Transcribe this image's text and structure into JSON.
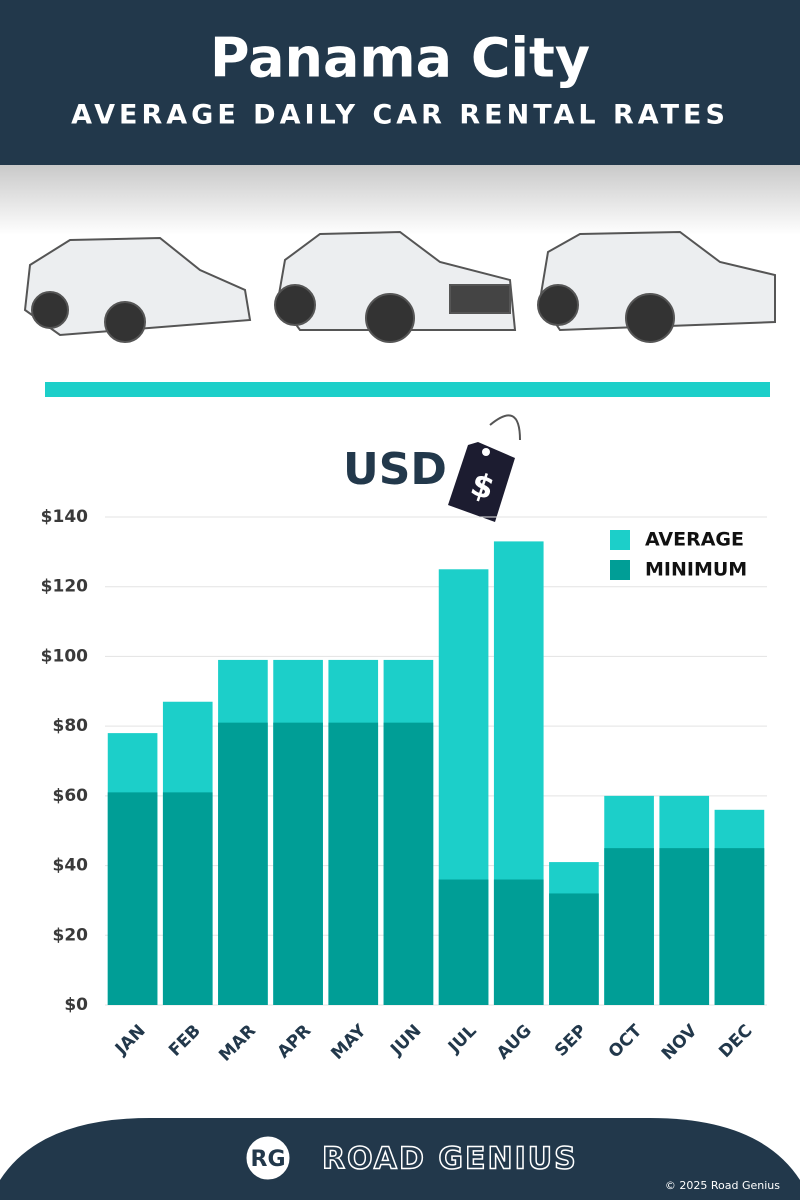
{
  "title": "Panama City",
  "subtitle": "AVERAGE DAILY CAR RENTAL RATES",
  "unit_label": "USD",
  "logo": "RG",
  "brand": "ROAD GENIUS",
  "copyright": "© 2025 Road Genius",
  "chart_data": {
    "type": "bar",
    "categories": [
      "JAN",
      "FEB",
      "MAR",
      "APR",
      "MAY",
      "JUN",
      "JUL",
      "AUG",
      "SEP",
      "OCT",
      "NOV",
      "DEC"
    ],
    "series": [
      {
        "name": "AVERAGE",
        "color": "#1ccfc9",
        "values": [
          78,
          87,
          99,
          99,
          99,
          99,
          125,
          133,
          41,
          60,
          60,
          56
        ]
      },
      {
        "name": "MINIMUM",
        "color": "#009e96",
        "values": [
          61,
          61,
          81,
          81,
          81,
          81,
          36,
          36,
          32,
          45,
          45,
          45
        ]
      }
    ],
    "ylim": [
      0,
      140
    ],
    "yticks": [
      {
        "value": 0,
        "label": "$0"
      },
      {
        "value": 20,
        "label": "$20"
      },
      {
        "value": 40,
        "label": "$40"
      },
      {
        "value": 60,
        "label": "$60"
      },
      {
        "value": 80,
        "label": "$80"
      },
      {
        "value": 100,
        "label": "$100"
      },
      {
        "value": 120,
        "label": "$120"
      },
      {
        "value": 140,
        "label": "$140"
      }
    ],
    "grid": true,
    "legend": "top-right"
  }
}
